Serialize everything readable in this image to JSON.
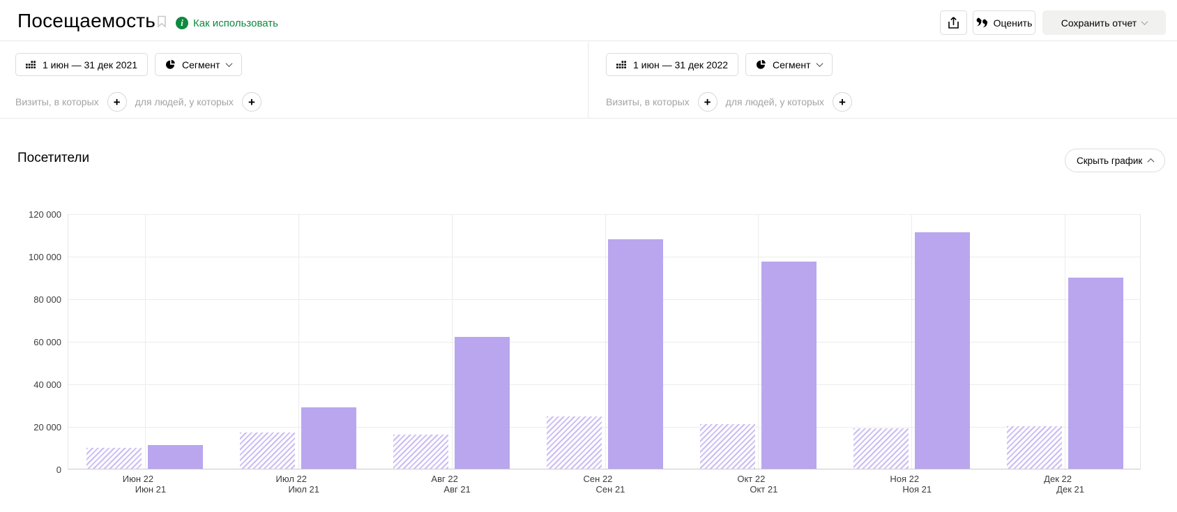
{
  "header": {
    "title": "Посещаемость",
    "how_to_use": "Как использовать",
    "rate_label": "Оценить",
    "save_report_label": "Сохранить отчет"
  },
  "filters": {
    "left": {
      "date_range": "1 июн — 31 дек 2021",
      "segment_label": "Сегмент",
      "visits_label": "Визиты, в которых",
      "people_label": "для людей, у которых"
    },
    "right": {
      "date_range": "1 июн — 31 дек 2022",
      "segment_label": "Сегмент",
      "visits_label": "Визиты, в которых",
      "people_label": "для людей, у которых"
    }
  },
  "report": {
    "section_title": "Посетители",
    "hide_chart_label": "Скрыть график"
  },
  "icons": {
    "plus": "+",
    "info": "i"
  },
  "colors": {
    "accent_green": "#0e8a3f",
    "bar_solid": "#b9a6ef",
    "bar_stripe": "#ccbcf3",
    "gridline": "#ececec",
    "baseline": "#c9c9c9"
  },
  "chart_data": {
    "type": "bar",
    "title": "Посетители",
    "categories": [
      "Июн",
      "Июл",
      "Авг",
      "Сен",
      "Окт",
      "Ноя",
      "Дек"
    ],
    "x_tick_labels_line1": [
      "Июн 22",
      "Июл 22",
      "Авг 22",
      "Сен 22",
      "Окт 22",
      "Ноя 22",
      "Дек 22"
    ],
    "x_tick_labels_line2": [
      "Июн 21",
      "Июл 21",
      "Авг 21",
      "Сен 21",
      "Окт 21",
      "Ноя 21",
      "Дек 21"
    ],
    "series": [
      {
        "name": "1 июн — 31 дек 2021",
        "key": "2021",
        "style": "hatched",
        "values": [
          10000,
          17000,
          16000,
          24500,
          21000,
          19000,
          20000
        ]
      },
      {
        "name": "1 июн — 31 дек 2022",
        "key": "2022",
        "style": "solid",
        "values": [
          11000,
          29000,
          62000,
          108000,
          97500,
          111000,
          90000
        ]
      }
    ],
    "xlabel": "",
    "ylabel": "",
    "ylim": [
      0,
      120000
    ],
    "y_ticks": [
      "120 000",
      "100 000",
      "80 000",
      "60 000",
      "40 000",
      "20 000",
      "0"
    ],
    "grid": true,
    "legend_position": "none"
  }
}
